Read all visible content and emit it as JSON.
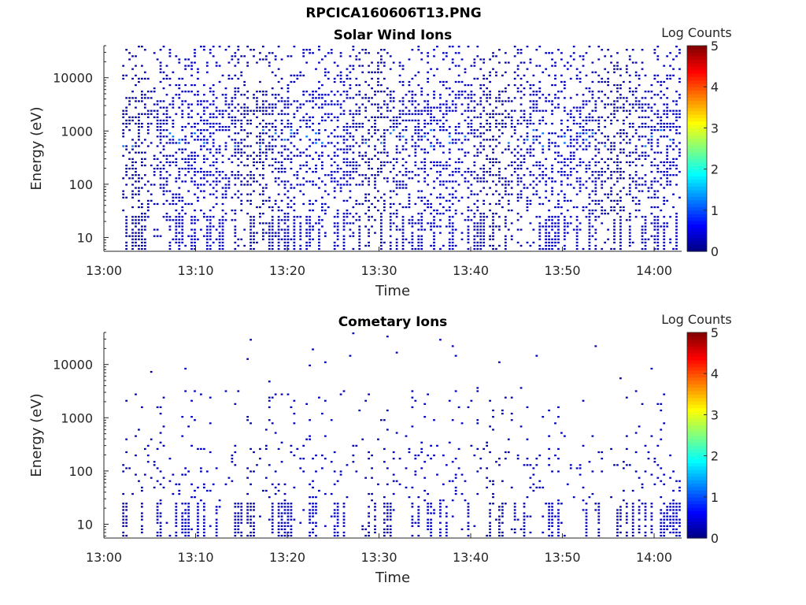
{
  "figure": {
    "title": "RPCICA160606T13.PNG"
  },
  "colorbar": {
    "label": "Log Counts",
    "range": [
      0,
      5
    ],
    "ticks": [
      "0",
      "1",
      "2",
      "3",
      "4",
      "5"
    ],
    "colormap": "jet"
  },
  "colors": {
    "axis": "#262626",
    "background": "#ffffff",
    "low_count": "#00008f",
    "mid_count": "#1a5cff"
  },
  "chart_data": [
    {
      "type": "heatmap",
      "title": "Solar Wind Ions",
      "xlabel": "Time",
      "ylabel": "Energy (eV)",
      "y_scale": "log",
      "x_ticks": [
        "13:00",
        "13:10",
        "13:20",
        "13:30",
        "13:40",
        "13:50",
        "14:00"
      ],
      "y_ticks": [
        "10",
        "100",
        "1000",
        "10000"
      ],
      "xlim": [
        "13:00",
        "14:03"
      ],
      "ylim": [
        5.5,
        40000
      ],
      "data_start": "13:02",
      "data_end": "14:03",
      "z_label": "Log Counts",
      "z_range": [
        0,
        5
      ],
      "dominant_z": 0.3,
      "peak_z": 1.2,
      "peak_energy": 700
    },
    {
      "type": "heatmap",
      "title": "Cometary Ions",
      "xlabel": "Time",
      "ylabel": "Energy (eV)",
      "y_scale": "log",
      "x_ticks": [
        "13:00",
        "13:10",
        "13:20",
        "13:30",
        "13:40",
        "13:50",
        "14:00"
      ],
      "y_ticks": [
        "10",
        "100",
        "1000",
        "10000"
      ],
      "xlim": [
        "13:00",
        "14:03"
      ],
      "ylim": [
        5.5,
        40000
      ],
      "data_start": "13:02",
      "data_end": "14:03",
      "z_label": "Log Counts",
      "z_range": [
        0,
        5
      ],
      "dominant_z": 0.3,
      "peak_z": 0.5,
      "peak_energy": 15
    }
  ]
}
